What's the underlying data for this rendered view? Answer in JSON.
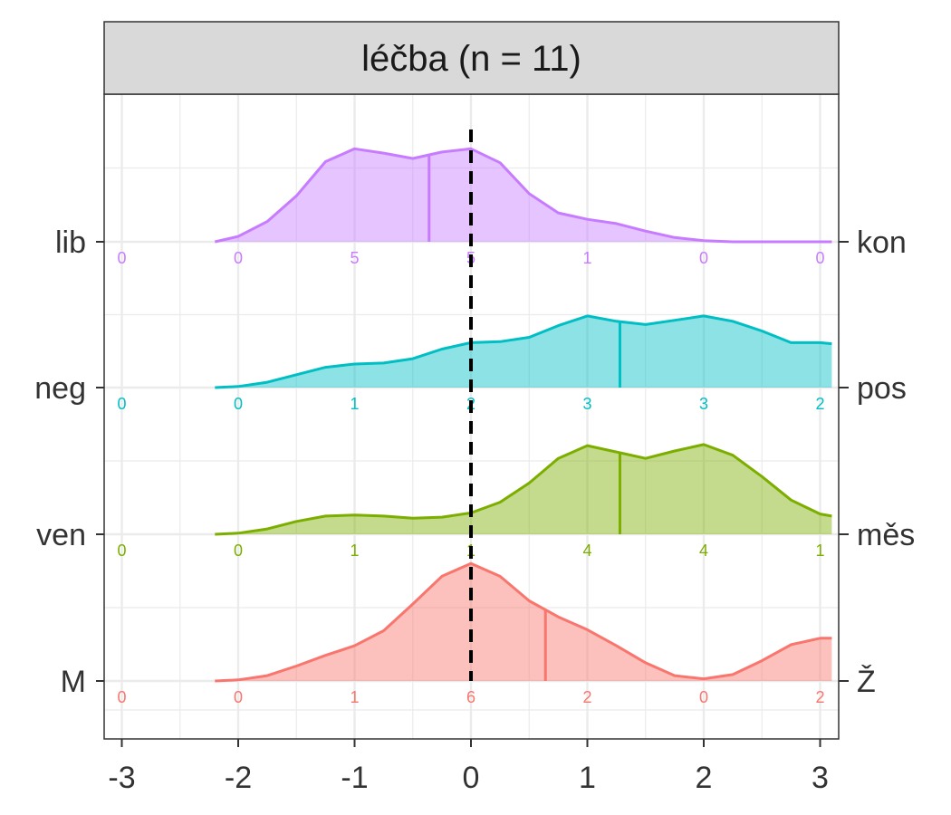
{
  "chart_data": {
    "type": "ridgeline",
    "title": "léčba (n = 11)",
    "xlim": [
      -3,
      3
    ],
    "x_ticks": [
      "-3",
      "-2",
      "-1",
      "0",
      "1",
      "2",
      "3"
    ],
    "reference_line_x": 0,
    "grid": true,
    "legend": "none",
    "count_positions": [
      -3,
      -2,
      -1,
      0,
      1,
      2,
      3
    ],
    "series": [
      {
        "left_label": "M",
        "right_label": "Ž",
        "color": "#F8766D",
        "mean": 0.64,
        "counts": [
          "0",
          "0",
          "1",
          "6",
          "2",
          "0",
          "2"
        ],
        "density": [
          [
            -2.2,
            0.0
          ],
          [
            -2.0,
            0.01
          ],
          [
            -1.75,
            0.05
          ],
          [
            -1.5,
            0.14
          ],
          [
            -1.25,
            0.24
          ],
          [
            -1.0,
            0.33
          ],
          [
            -0.75,
            0.47
          ],
          [
            -0.5,
            0.72
          ],
          [
            -0.25,
            0.98
          ],
          [
            0.0,
            1.1
          ],
          [
            0.25,
            0.98
          ],
          [
            0.5,
            0.75
          ],
          [
            0.75,
            0.6
          ],
          [
            1.0,
            0.48
          ],
          [
            1.25,
            0.33
          ],
          [
            1.5,
            0.17
          ],
          [
            1.75,
            0.05
          ],
          [
            2.0,
            0.02
          ],
          [
            2.25,
            0.06
          ],
          [
            2.5,
            0.19
          ],
          [
            2.75,
            0.34
          ],
          [
            3.0,
            0.4
          ],
          [
            3.1,
            0.4
          ]
        ]
      },
      {
        "left_label": "ven",
        "right_label": "měs",
        "color": "#7CAE00",
        "mean": 1.28,
        "counts": [
          "0",
          "0",
          "1",
          "1",
          "4",
          "4",
          "1"
        ],
        "density": [
          [
            -2.2,
            0.0
          ],
          [
            -2.0,
            0.01
          ],
          [
            -1.75,
            0.05
          ],
          [
            -1.5,
            0.12
          ],
          [
            -1.25,
            0.17
          ],
          [
            -1.0,
            0.18
          ],
          [
            -0.75,
            0.17
          ],
          [
            -0.5,
            0.15
          ],
          [
            -0.25,
            0.16
          ],
          [
            0.0,
            0.2
          ],
          [
            0.25,
            0.3
          ],
          [
            0.5,
            0.48
          ],
          [
            0.75,
            0.71
          ],
          [
            1.0,
            0.83
          ],
          [
            1.25,
            0.77
          ],
          [
            1.5,
            0.71
          ],
          [
            1.75,
            0.78
          ],
          [
            2.0,
            0.84
          ],
          [
            2.25,
            0.74
          ],
          [
            2.5,
            0.54
          ],
          [
            2.75,
            0.32
          ],
          [
            3.0,
            0.19
          ],
          [
            3.1,
            0.17
          ]
        ]
      },
      {
        "left_label": "neg",
        "right_label": "pos",
        "color": "#00BFC4",
        "mean": 1.28,
        "counts": [
          "0",
          "0",
          "1",
          "2",
          "3",
          "3",
          "2"
        ],
        "density": [
          [
            -2.2,
            0.0
          ],
          [
            -2.0,
            0.01
          ],
          [
            -1.75,
            0.05
          ],
          [
            -1.5,
            0.12
          ],
          [
            -1.25,
            0.19
          ],
          [
            -1.0,
            0.22
          ],
          [
            -0.75,
            0.23
          ],
          [
            -0.5,
            0.27
          ],
          [
            -0.25,
            0.36
          ],
          [
            0.0,
            0.42
          ],
          [
            0.25,
            0.43
          ],
          [
            0.5,
            0.47
          ],
          [
            0.75,
            0.58
          ],
          [
            1.0,
            0.67
          ],
          [
            1.25,
            0.62
          ],
          [
            1.5,
            0.59
          ],
          [
            1.75,
            0.63
          ],
          [
            2.0,
            0.67
          ],
          [
            2.25,
            0.62
          ],
          [
            2.5,
            0.53
          ],
          [
            2.75,
            0.42
          ],
          [
            3.0,
            0.42
          ],
          [
            3.1,
            0.41
          ]
        ]
      },
      {
        "left_label": "lib",
        "right_label": "kon",
        "color": "#C77CFF",
        "mean": -0.36,
        "counts": [
          "0",
          "0",
          "5",
          "5",
          "1",
          "0",
          "0"
        ],
        "density": [
          [
            -2.2,
            0.0
          ],
          [
            -2.0,
            0.05
          ],
          [
            -1.75,
            0.19
          ],
          [
            -1.5,
            0.43
          ],
          [
            -1.25,
            0.75
          ],
          [
            -1.0,
            0.87
          ],
          [
            -0.75,
            0.83
          ],
          [
            -0.5,
            0.78
          ],
          [
            -0.25,
            0.84
          ],
          [
            0.0,
            0.87
          ],
          [
            0.25,
            0.74
          ],
          [
            0.5,
            0.45
          ],
          [
            0.75,
            0.27
          ],
          [
            1.0,
            0.21
          ],
          [
            1.25,
            0.17
          ],
          [
            1.5,
            0.1
          ],
          [
            1.75,
            0.04
          ],
          [
            2.0,
            0.01
          ],
          [
            2.25,
            0.0
          ],
          [
            2.5,
            0.0
          ],
          [
            2.75,
            0.0
          ],
          [
            3.0,
            0.0
          ],
          [
            3.1,
            0.0
          ]
        ]
      }
    ]
  }
}
